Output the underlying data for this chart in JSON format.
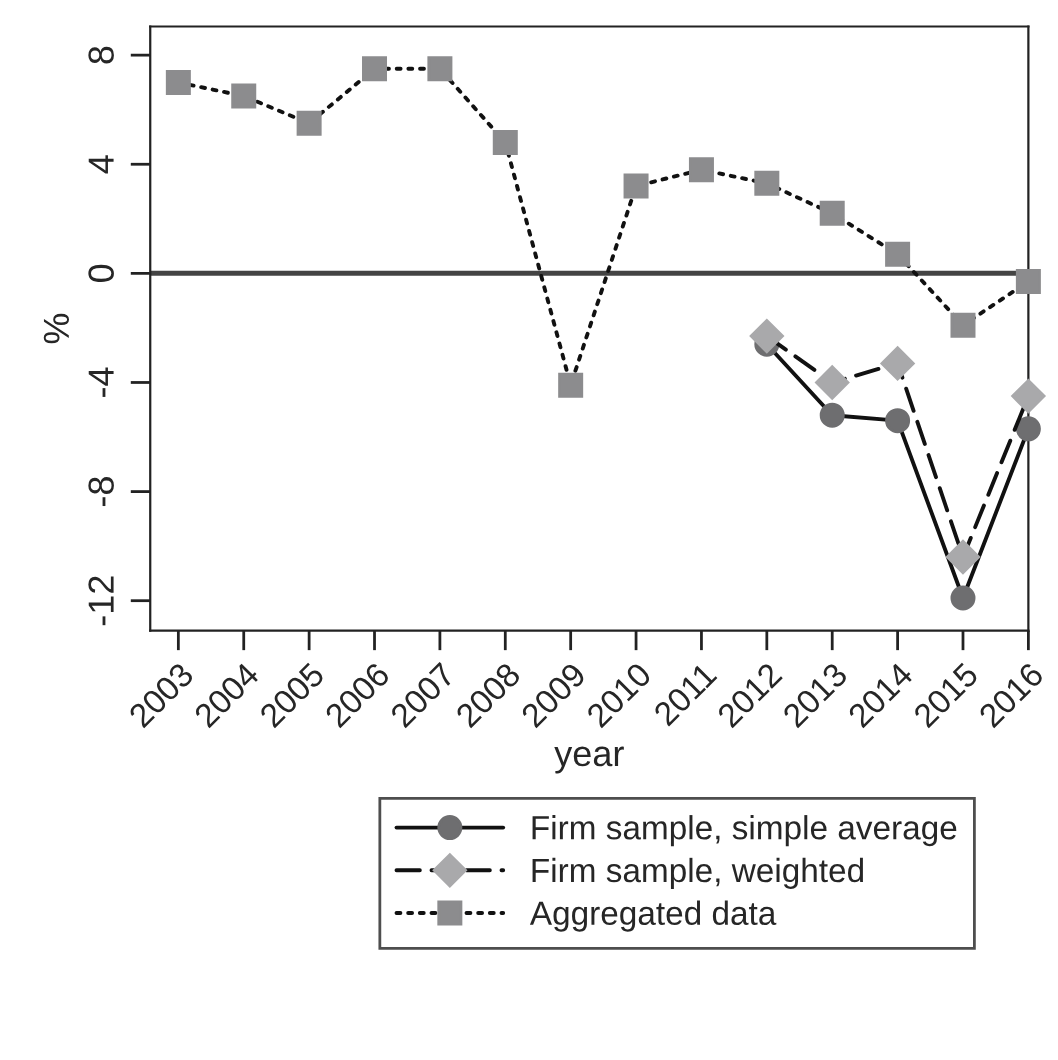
{
  "chart_data": {
    "type": "line",
    "xlabel": "year",
    "ylabel": "%",
    "x": [
      2003,
      2004,
      2005,
      2006,
      2007,
      2008,
      2009,
      2010,
      2011,
      2012,
      2013,
      2014,
      2015,
      2016
    ],
    "series": [
      {
        "name": "Firm sample, simple average",
        "color": "#6e6e70",
        "marker": "circle",
        "line_style": "solid",
        "values": [
          null,
          null,
          null,
          null,
          null,
          null,
          null,
          null,
          null,
          -2.6,
          -5.2,
          -5.4,
          -11.9,
          -5.7
        ]
      },
      {
        "name": "Firm sample, weighted",
        "color": "#a9a9ab",
        "marker": "diamond",
        "line_style": "dashed",
        "values": [
          null,
          null,
          null,
          null,
          null,
          null,
          null,
          null,
          null,
          -2.3,
          -4.0,
          -3.3,
          -10.4,
          -4.5
        ]
      },
      {
        "name": "Aggregated data",
        "color": "#8c8c8e",
        "marker": "square",
        "line_style": "dotted",
        "values": [
          7.0,
          6.5,
          5.5,
          7.5,
          7.5,
          4.8,
          -4.1,
          3.2,
          3.8,
          3.3,
          2.2,
          0.7,
          -1.9,
          -0.3
        ]
      }
    ],
    "xlim": [
      2002.57,
      2016.0
    ],
    "xticks": [
      2003,
      2004,
      2005,
      2006,
      2007,
      2008,
      2009,
      2010,
      2011,
      2012,
      2013,
      2014,
      2015,
      2016
    ],
    "ylim": [
      -13.1,
      9.05
    ],
    "yticks": [
      {
        "value": -12,
        "label": "-12"
      },
      {
        "value": -8,
        "label": "-8"
      },
      {
        "value": -4,
        "label": "-4"
      },
      0,
      4,
      8
    ],
    "ref_lines": [
      {
        "axis": "y",
        "value": 0,
        "color": "#444444",
        "line_style": "solid"
      }
    ],
    "grid": false,
    "legend": "bottom"
  }
}
